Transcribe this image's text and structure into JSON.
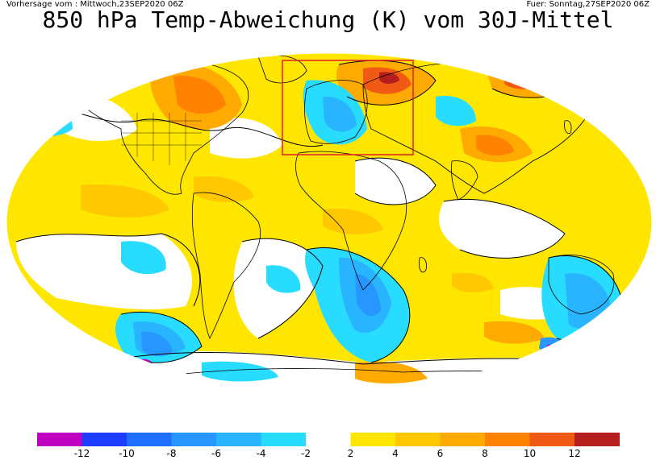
{
  "header": {
    "left_text": "Vorhersage vom : Mittwoch,23SEP2020 06Z",
    "right_text": "Fuer: Sonntag,27SEP2020 06Z",
    "title": "850 hPa Temp-Abweichung (K) vom 30J-Mittel"
  },
  "legend": {
    "bins": [
      {
        "color": "#c000c0"
      },
      {
        "color": "#1e3cff"
      },
      {
        "color": "#1e6eff"
      },
      {
        "color": "#2896ff"
      },
      {
        "color": "#28b4ff"
      },
      {
        "color": "#28dcff"
      },
      {
        "color": "#ffffff"
      },
      {
        "color": "#ffe600"
      },
      {
        "color": "#ffc800"
      },
      {
        "color": "#ffaa00"
      },
      {
        "color": "#ff8200"
      },
      {
        "color": "#f05a14"
      },
      {
        "color": "#b41e1e"
      }
    ],
    "labels": [
      "-12",
      "-10",
      "-8",
      "-6",
      "-4",
      "-2",
      "2",
      "4",
      "6",
      "8",
      "10",
      "12"
    ]
  },
  "map": {
    "colors": {
      "warm1": "#ffe600",
      "warm2": "#ffc800",
      "warm3": "#ffaa00",
      "warm4": "#ff8200",
      "warm5": "#f05a14",
      "warm6": "#b41e1e",
      "cold1": "#28dcff",
      "cold2": "#28b4ff",
      "cold3": "#2896ff",
      "cold4": "#1e6eff",
      "cold5": "#c000c0",
      "box": "#e02020"
    }
  }
}
